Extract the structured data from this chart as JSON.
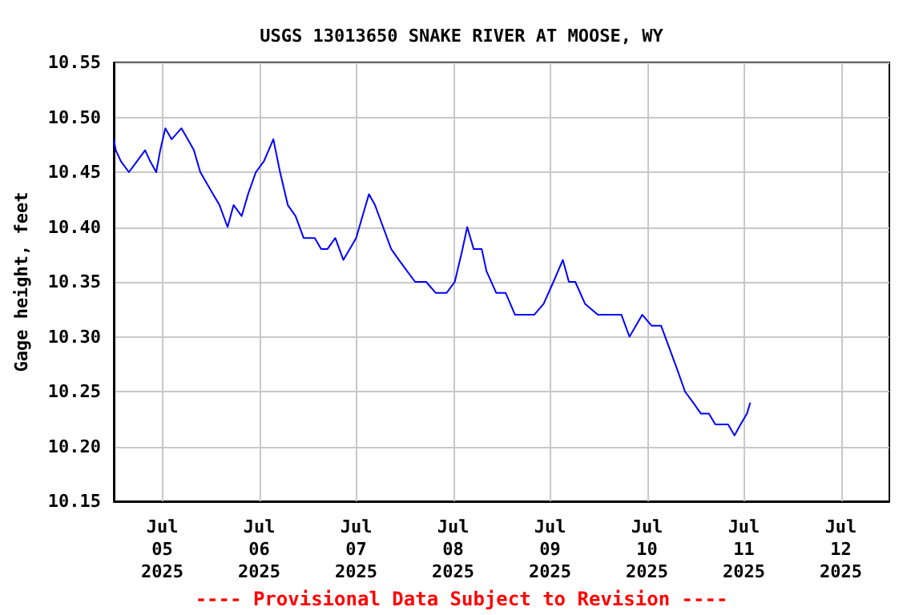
{
  "chart_data": {
    "type": "line",
    "title": "USGS 13013650 SNAKE RIVER AT MOOSE, WY",
    "ylabel": "Gage height, feet",
    "annotations": [
      "---- Provisional Data Subject to Revision ----"
    ],
    "x": [
      "2025-07-04T12:00",
      "2025-07-04T12:30",
      "2025-07-04T13:45",
      "2025-07-04T15:45",
      "2025-07-04T17:45",
      "2025-07-04T19:45",
      "2025-07-04T21:00",
      "2025-07-04T22:30",
      "2025-07-04T23:30",
      "2025-07-05T00:45",
      "2025-07-05T02:20",
      "2025-07-05T04:45",
      "2025-07-05T06:20",
      "2025-07-05T07:50",
      "2025-07-05T09:25",
      "2025-07-05T11:00",
      "2025-07-05T12:35",
      "2025-07-05T14:10",
      "2025-07-05T16:10",
      "2025-07-05T17:40",
      "2025-07-05T19:40",
      "2025-07-05T21:15",
      "2025-07-05T23:10",
      "2025-07-06T01:10",
      "2025-07-06T03:30",
      "2025-07-06T05:10",
      "2025-07-06T07:05",
      "2025-07-06T09:00",
      "2025-07-06T11:00",
      "2025-07-06T13:45",
      "2025-07-06T15:20",
      "2025-07-06T16:55",
      "2025-07-06T18:50",
      "2025-07-06T20:50",
      "2025-07-06T22:25",
      "2025-07-07T00:00",
      "2025-07-07T01:35",
      "2025-07-07T03:10",
      "2025-07-07T04:40",
      "2025-07-07T06:40",
      "2025-07-07T08:40",
      "2025-07-07T10:35",
      "2025-07-07T12:35",
      "2025-07-07T14:35",
      "2025-07-07T17:20",
      "2025-07-07T19:40",
      "2025-07-07T22:25",
      "2025-07-08T00:25",
      "2025-07-08T02:20",
      "2025-07-08T03:30",
      "2025-07-08T05:05",
      "2025-07-08T07:05",
      "2025-07-08T08:15",
      "2025-07-08T10:40",
      "2025-07-08T13:00",
      "2025-07-08T15:20",
      "2025-07-08T17:40",
      "2025-07-08T20:05",
      "2025-07-08T22:25",
      "2025-07-09T00:50",
      "2025-07-09T03:10",
      "2025-07-09T04:40",
      "2025-07-09T06:15",
      "2025-07-09T08:40",
      "2025-07-09T11:50",
      "2025-07-09T14:55",
      "2025-07-09T17:40",
      "2025-07-09T19:40",
      "2025-07-09T21:15",
      "2025-07-09T22:50",
      "2025-07-10T01:10",
      "2025-07-10T03:30",
      "2025-07-10T05:30",
      "2025-07-10T07:30",
      "2025-07-10T09:25",
      "2025-07-10T11:25",
      "2025-07-10T13:20",
      "2025-07-10T15:20",
      "2025-07-10T16:55",
      "2025-07-10T18:30",
      "2025-07-10T20:05",
      "2025-07-10T21:40",
      "2025-07-10T23:10",
      "2025-07-11T00:45",
      "2025-07-11T01:35"
    ],
    "series": [
      {
        "color": "#0000ff",
        "values": [
          10.48,
          10.47,
          10.46,
          10.45,
          10.46,
          10.47,
          10.46,
          10.45,
          10.47,
          10.49,
          10.48,
          10.49,
          10.48,
          10.47,
          10.45,
          10.44,
          10.43,
          10.42,
          10.4,
          10.42,
          10.41,
          10.43,
          10.45,
          10.46,
          10.48,
          10.45,
          10.42,
          10.41,
          10.39,
          10.39,
          10.38,
          10.38,
          10.39,
          10.37,
          10.38,
          10.39,
          10.41,
          10.43,
          10.42,
          10.4,
          10.38,
          10.37,
          10.36,
          10.35,
          10.35,
          10.34,
          10.34,
          10.35,
          10.38,
          10.4,
          10.38,
          10.38,
          10.36,
          10.34,
          10.34,
          10.32,
          10.32,
          10.32,
          10.33,
          10.35,
          10.37,
          10.35,
          10.35,
          10.33,
          10.32,
          10.32,
          10.32,
          10.3,
          10.31,
          10.32,
          10.31,
          10.31,
          10.29,
          10.27,
          10.25,
          10.24,
          10.23,
          10.23,
          10.22,
          10.22,
          10.22,
          10.21,
          10.22,
          10.23,
          10.24
        ]
      }
    ],
    "xlim": [
      "2025-07-04T12:00",
      "2025-07-12T12:00"
    ],
    "xticks": [
      {
        "value": "2025-07-05",
        "label": "Jul\n05\n2025"
      },
      {
        "value": "2025-07-06",
        "label": "Jul\n06\n2025"
      },
      {
        "value": "2025-07-07",
        "label": "Jul\n07\n2025"
      },
      {
        "value": "2025-07-08",
        "label": "Jul\n08\n2025"
      },
      {
        "value": "2025-07-09",
        "label": "Jul\n09\n2025"
      },
      {
        "value": "2025-07-10",
        "label": "Jul\n10\n2025"
      },
      {
        "value": "2025-07-11",
        "label": "Jul\n11\n2025"
      },
      {
        "value": "2025-07-12",
        "label": "Jul\n12\n2025"
      }
    ],
    "ylim": [
      10.15,
      10.55
    ],
    "yticks": [
      10.15,
      {
        "value": 10.2,
        "label": "10.20"
      },
      10.25,
      {
        "value": 10.3,
        "label": "10.30"
      },
      10.35,
      {
        "value": 10.4,
        "label": "10.40"
      },
      10.45,
      {
        "value": 10.5,
        "label": "10.50"
      },
      10.55
    ],
    "grid": true,
    "marker": "none",
    "line_style": "solid"
  }
}
